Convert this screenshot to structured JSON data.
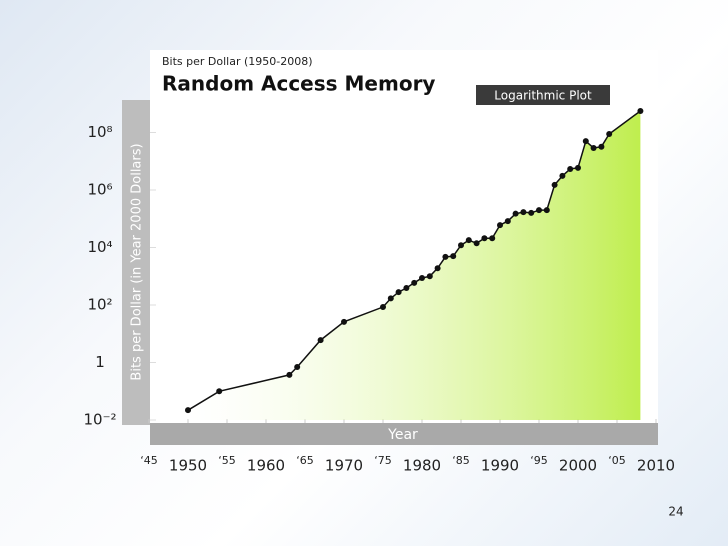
{
  "chart_data": {
    "type": "line",
    "subtitle": "Bits per Dollar (1950-2008)",
    "title": "Random Access Memory",
    "annotation": "Logarithmic Plot",
    "y_label": "Bits per Dollar (in Year 2000 Dollars)",
    "x_label": "Year",
    "page_number": "24",
    "log_y": true,
    "color": "#111111",
    "area_color": "#b8ec3a",
    "xlim": [
      1945,
      2010
    ],
    "xticks": [
      {
        "value": 1945,
        "label": "‘45"
      },
      1950,
      {
        "value": 1955,
        "label": "‘55"
      },
      1960,
      {
        "value": 1965,
        "label": "‘65"
      },
      1970,
      {
        "value": 1975,
        "label": "‘75"
      },
      1980,
      {
        "value": 1985,
        "label": "‘85"
      },
      1990,
      {
        "value": 1995,
        "label": "‘95"
      },
      2000,
      {
        "value": 2005,
        "label": "‘05"
      },
      2010
    ],
    "ylim": [
      0.01,
      1000000000
    ],
    "yticks": [
      {
        "value": 0.01,
        "label": "10⁻²"
      },
      1,
      {
        "value": 100,
        "label": "10²"
      },
      {
        "value": 10000,
        "label": "10⁴"
      },
      {
        "value": 1000000,
        "label": "10⁶"
      },
      {
        "value": 100000000,
        "label": "10⁸"
      }
    ],
    "x": [
      1950,
      1954,
      1963,
      1964,
      1967,
      1970,
      1975,
      1976,
      1977,
      1978,
      1979,
      1980,
      1981,
      1982,
      1983,
      1984,
      1985,
      1986,
      1987,
      1988,
      1989,
      1990,
      1991,
      1992,
      1993,
      1994,
      1995,
      1996,
      1997,
      1998,
      1999,
      2000,
      2001,
      2002,
      2003,
      2004,
      2008
    ],
    "values": [
      0.022,
      0.1,
      0.37,
      0.7,
      6,
      26,
      85,
      170,
      280,
      390,
      590,
      870,
      1000,
      1900,
      4700,
      5000,
      12000,
      18000,
      14000,
      21000,
      21000,
      60000,
      83000,
      150000,
      170000,
      160000,
      200000,
      200000,
      1500000,
      3100000,
      5400000,
      5900000,
      50000000,
      29000000,
      32000000,
      89000000,
      560000000
    ]
  }
}
